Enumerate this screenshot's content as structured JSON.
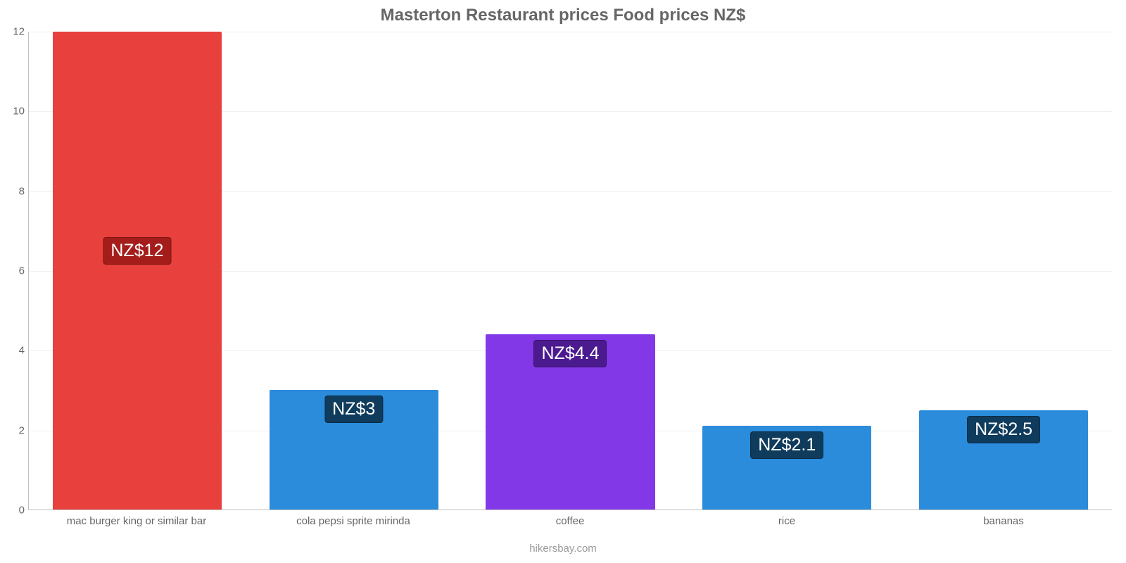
{
  "chart": {
    "type": "bar",
    "title": "Masterton Restaurant prices Food prices NZ$",
    "title_fontsize": 24,
    "title_color": "#666666",
    "source": "hikersbay.com",
    "ylim": [
      0,
      12
    ],
    "yticks": [
      0,
      2,
      4,
      6,
      8,
      10,
      12
    ],
    "grid_color": "#f0f0f0",
    "axis_color": "#c0c0c0",
    "background_color": "#ffffff",
    "label_fontsize": 15,
    "value_fontsize": 25,
    "bar_width_pct": 78,
    "bars": [
      {
        "category": "mac burger king or similar bar",
        "value": 12,
        "display": "NZ$12",
        "color": "#e8403c",
        "badge_bg": "#a41d1a"
      },
      {
        "category": "cola pepsi sprite mirinda",
        "value": 3,
        "display": "NZ$3",
        "color": "#2b8cdb",
        "badge_bg": "#0f3b5c"
      },
      {
        "category": "coffee",
        "value": 4.4,
        "display": "NZ$4.4",
        "color": "#8338e8",
        "badge_bg": "#4b1a8f"
      },
      {
        "category": "rice",
        "value": 2.1,
        "display": "NZ$2.1",
        "color": "#2b8cdb",
        "badge_bg": "#0f3b5c"
      },
      {
        "category": "bananas",
        "value": 2.5,
        "display": "NZ$2.5",
        "color": "#2b8cdb",
        "badge_bg": "#0f3b5c"
      }
    ]
  }
}
